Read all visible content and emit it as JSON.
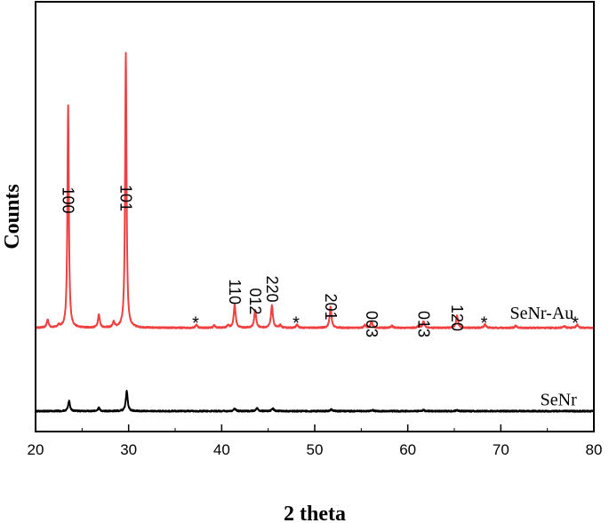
{
  "chart_data": {
    "type": "line",
    "xlabel": "2 theta",
    "ylabel": "Counts",
    "xlim": [
      20,
      80
    ],
    "xticks": [
      20,
      30,
      40,
      50,
      60,
      70,
      80
    ],
    "y_tick_labels_shown": false,
    "grid": false,
    "legend": "none (series labelled inline at right)",
    "series": [
      {
        "name": "SeNr-Au",
        "color": "#f04040",
        "baseline": 375,
        "peaks": [
          {
            "x": 21.3,
            "h": 36
          },
          {
            "x": 22.5,
            "h": 12
          },
          {
            "x": 23.5,
            "h": 1000
          },
          {
            "x": 26.8,
            "h": 58
          },
          {
            "x": 28.4,
            "h": 24
          },
          {
            "x": 29.7,
            "h": 1240
          },
          {
            "x": 37.3,
            "h": 14
          },
          {
            "x": 39.2,
            "h": 10
          },
          {
            "x": 40.7,
            "h": 12
          },
          {
            "x": 41.4,
            "h": 104
          },
          {
            "x": 43.6,
            "h": 82
          },
          {
            "x": 45.4,
            "h": 102
          },
          {
            "x": 46.3,
            "h": 12
          },
          {
            "x": 48.1,
            "h": 14
          },
          {
            "x": 51.7,
            "h": 94
          },
          {
            "x": 55.4,
            "h": 12
          },
          {
            "x": 56.1,
            "h": 29
          },
          {
            "x": 58.3,
            "h": 10
          },
          {
            "x": 61.2,
            "h": 10
          },
          {
            "x": 61.7,
            "h": 29
          },
          {
            "x": 65.3,
            "h": 56
          },
          {
            "x": 68.3,
            "h": 17
          },
          {
            "x": 71.6,
            "h": 9
          },
          {
            "x": 76.8,
            "h": 9
          },
          {
            "x": 78.2,
            "h": 15
          }
        ]
      },
      {
        "name": "SeNr",
        "color": "#000000",
        "baseline": 0,
        "peaks": [
          {
            "x": 23.6,
            "h": 45
          },
          {
            "x": 26.8,
            "h": 16
          },
          {
            "x": 29.8,
            "h": 90
          },
          {
            "x": 41.4,
            "h": 12
          },
          {
            "x": 43.8,
            "h": 15
          },
          {
            "x": 45.5,
            "h": 12
          },
          {
            "x": 51.8,
            "h": 8
          },
          {
            "x": 56.2,
            "h": 5
          },
          {
            "x": 61.7,
            "h": 5
          },
          {
            "x": 65.3,
            "h": 5
          }
        ]
      }
    ],
    "peak_labels": [
      {
        "text": "100",
        "x": 23.5,
        "y": 1010
      },
      {
        "text": "101",
        "x": 29.7,
        "y": 1020
      },
      {
        "text": "110",
        "x": 41.4,
        "y": 595
      },
      {
        "text": "012",
        "x": 43.6,
        "y": 555
      },
      {
        "text": "220",
        "x": 45.4,
        "y": 610
      },
      {
        "text": "201",
        "x": 51.7,
        "y": 530
      },
      {
        "text": "003",
        "x": 56.1,
        "y": 452
      },
      {
        "text": "013",
        "x": 61.7,
        "y": 452
      },
      {
        "text": "120",
        "x": 65.3,
        "y": 480
      }
    ],
    "star_markers": [
      {
        "x": 37.2,
        "y": 410
      },
      {
        "x": 48.0,
        "y": 410
      },
      {
        "x": 68.2,
        "y": 410
      },
      {
        "x": 78.0,
        "y": 410
      }
    ],
    "series_labels": [
      {
        "text": "SeNr-Au",
        "x": 74.4,
        "y": 445
      },
      {
        "text": "SeNr",
        "x": 76.2,
        "y": 55
      }
    ]
  }
}
